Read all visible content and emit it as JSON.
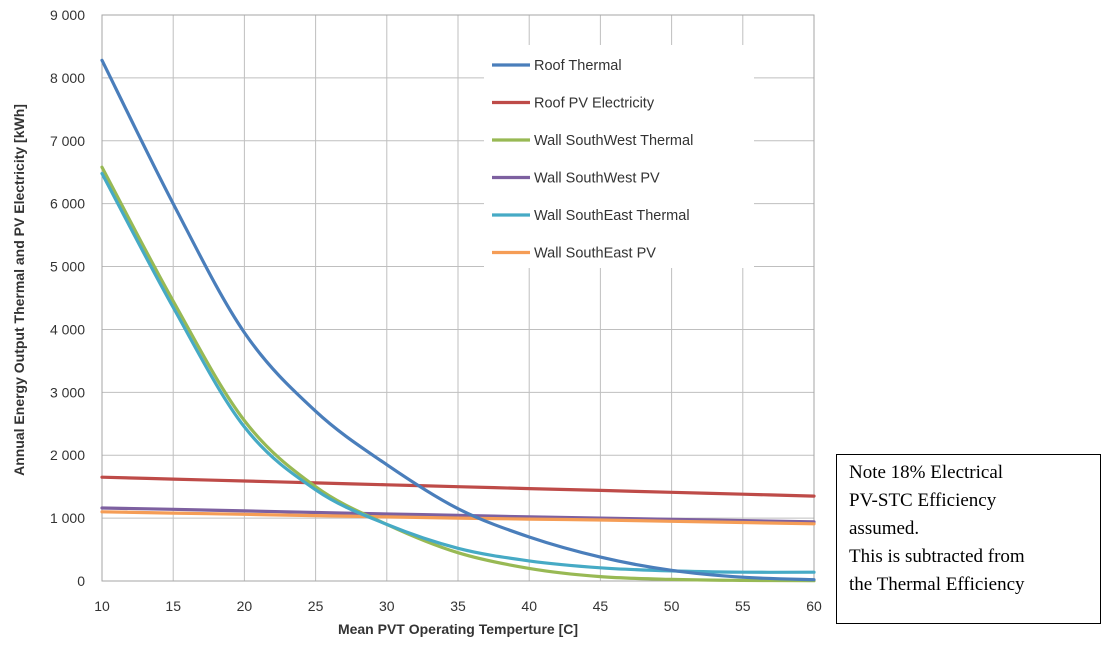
{
  "chart_data": {
    "type": "line",
    "xlabel": "Mean PVT Operating Temperture [C]",
    "ylabel": "Annual Energy Output Thermal and PV Electricity [kWh]",
    "xlim": [
      10,
      60
    ],
    "ylim": [
      0,
      9000
    ],
    "xticks": [
      "10",
      "15",
      "20",
      "25",
      "30",
      "35",
      "40",
      "45",
      "50",
      "55",
      "60"
    ],
    "yticks": [
      "0",
      "1 000",
      "2 000",
      "3 000",
      "4 000",
      "5 000",
      "6 000",
      "7 000",
      "8 000",
      "9 000"
    ],
    "grid": true,
    "legend_position": "top-right inside plot",
    "x": [
      10,
      15,
      20,
      25,
      30,
      35,
      40,
      45,
      50,
      55,
      60
    ],
    "series": [
      {
        "name": "Roof Thermal",
        "color": "#4A7EBB",
        "values": [
          8280,
          6000,
          3950,
          2700,
          1850,
          1150,
          700,
          380,
          170,
          60,
          20
        ]
      },
      {
        "name": "Roof PV Electricity",
        "color": "#BE4B48",
        "values": [
          1650,
          1620,
          1590,
          1560,
          1530,
          1500,
          1470,
          1440,
          1410,
          1380,
          1350
        ]
      },
      {
        "name": "Wall SouthWest Thermal",
        "color": "#98B954",
        "values": [
          6580,
          4450,
          2550,
          1500,
          900,
          450,
          200,
          70,
          25,
          10,
          5
        ]
      },
      {
        "name": "Wall SouthWest PV",
        "color": "#7D60A0",
        "values": [
          1160,
          1140,
          1115,
          1090,
          1065,
          1045,
          1020,
          1000,
          980,
          960,
          940
        ]
      },
      {
        "name": "Wall SouthEast Thermal",
        "color": "#46AAC5",
        "values": [
          6480,
          4350,
          2450,
          1450,
          900,
          520,
          320,
          210,
          160,
          140,
          140
        ]
      },
      {
        "name": "Wall SouthEast PV",
        "color": "#F59D56",
        "values": [
          1100,
          1080,
          1060,
          1040,
          1020,
          1000,
          985,
          970,
          950,
          930,
          910
        ]
      }
    ]
  },
  "note": {
    "lines": [
      "Note 18%  Electrical",
      "PV-STC Efficiency",
      "assumed.",
      "This is subtracted from",
      "the Thermal Efficiency"
    ]
  }
}
